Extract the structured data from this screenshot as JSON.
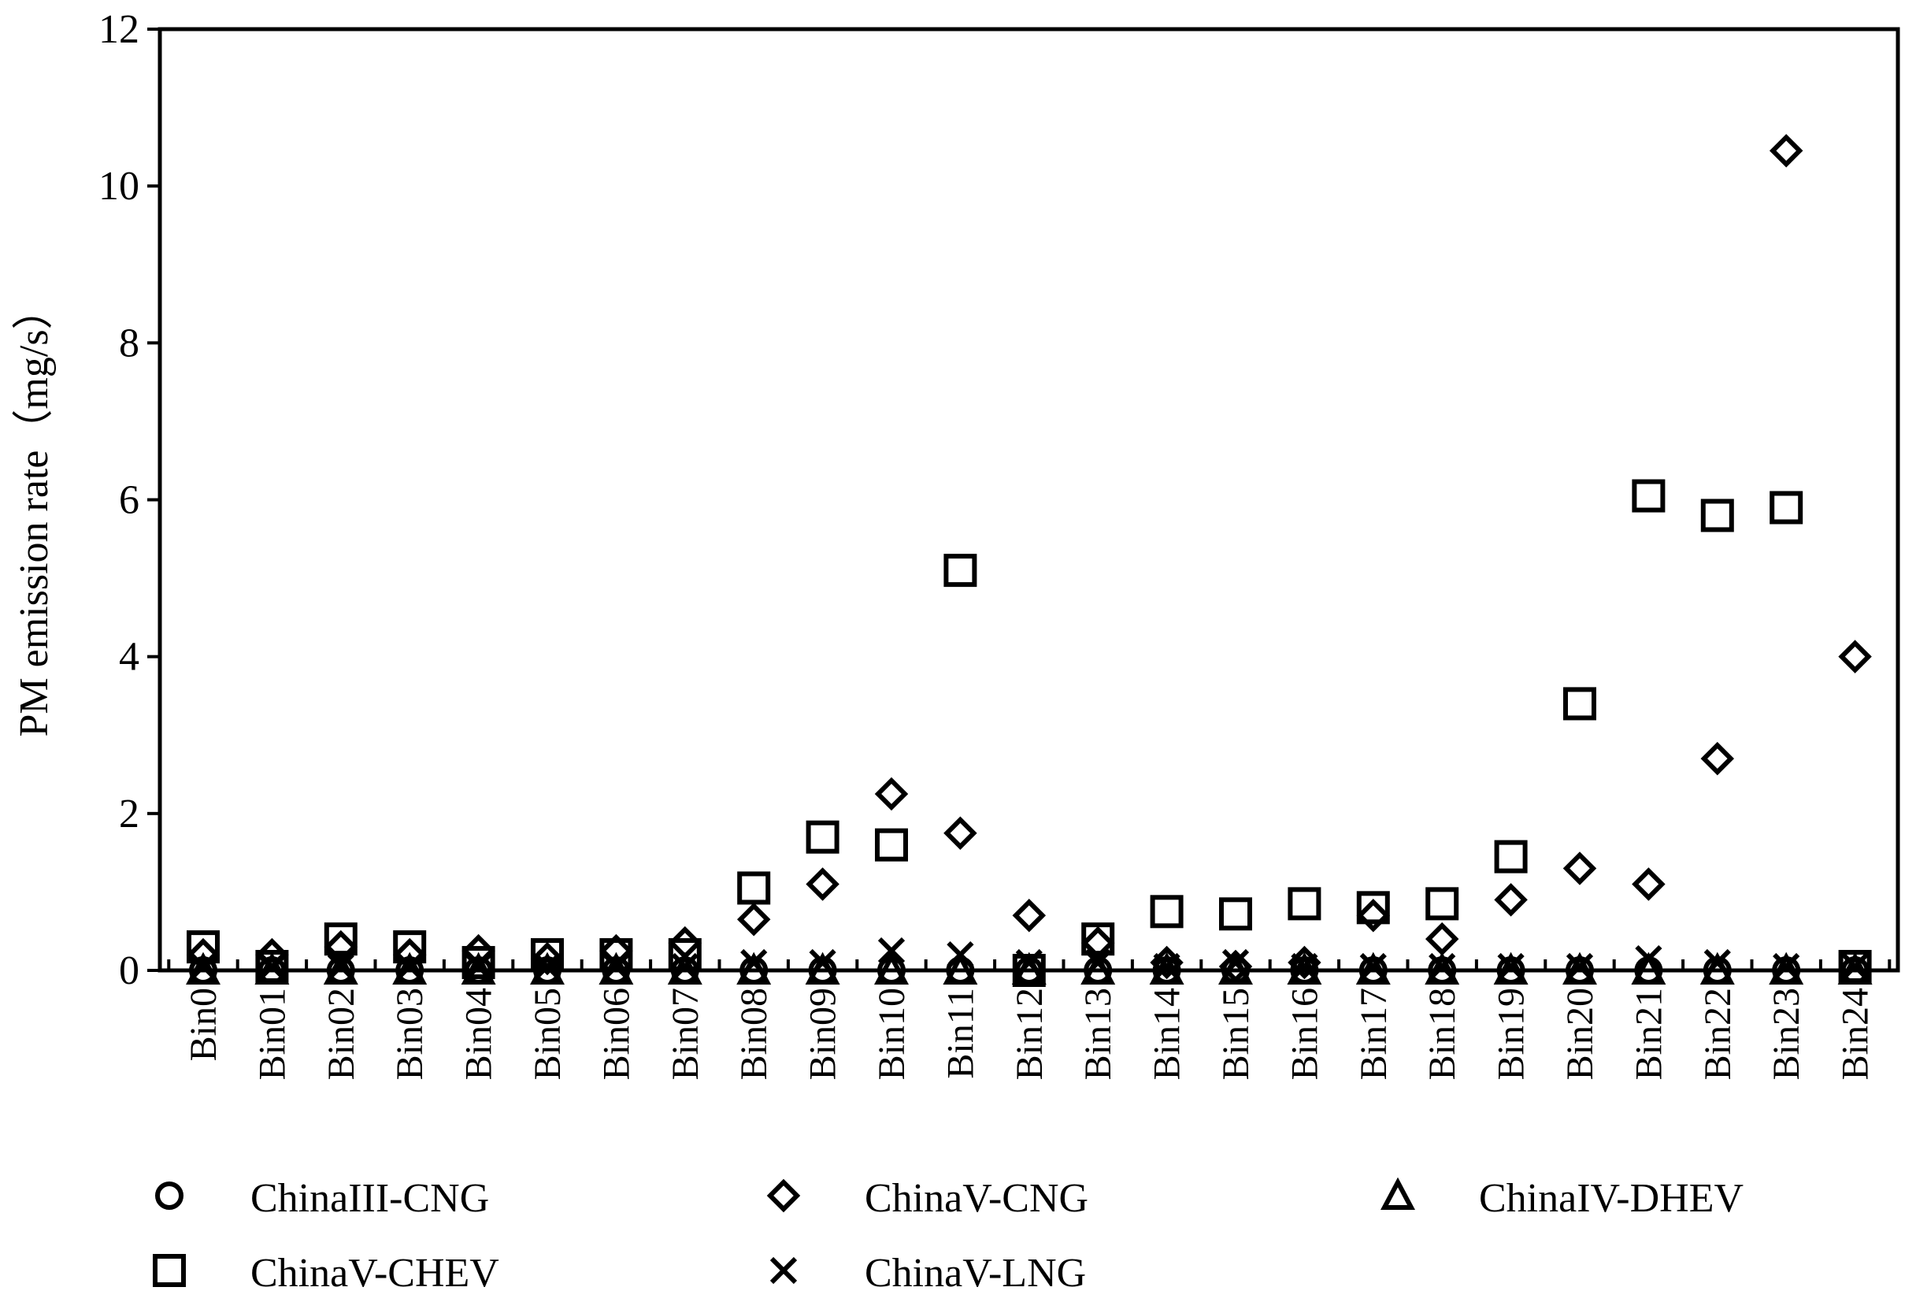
{
  "chart_data": {
    "type": "scatter",
    "title": "",
    "xlabel": "",
    "ylabel": "PM emission rate（mg/s）",
    "ylim": [
      0,
      12
    ],
    "yticks": [
      "0",
      "2",
      "4",
      "6",
      "8",
      "10",
      "12"
    ],
    "categories": [
      "Bin0",
      "Bin01",
      "Bin02",
      "Bin03",
      "Bin04",
      "Bin05",
      "Bin06",
      "Bin07",
      "Bin08",
      "Bin09",
      "Bin10",
      "Bin11",
      "Bin12",
      "Bin13",
      "Bin14",
      "Bin15",
      "Bin16",
      "Bin17",
      "Bin18",
      "Bin19",
      "Bin20",
      "Bin21",
      "Bin22",
      "Bin23",
      "Bin24"
    ],
    "legend_position": "bottom",
    "series": [
      {
        "name": "ChinaIII-CNG",
        "marker": "circle",
        "values": [
          0,
          0,
          0,
          0,
          0,
          0,
          0,
          0,
          0,
          0,
          0,
          0,
          0,
          0,
          0,
          0,
          0,
          0,
          0,
          0,
          0,
          0,
          0,
          0,
          0
        ]
      },
      {
        "name": "ChinaV-CNG",
        "marker": "diamond",
        "values": [
          0.2,
          0.2,
          0.3,
          0.2,
          0.25,
          0.15,
          0.25,
          0.35,
          0.65,
          1.1,
          2.25,
          1.75,
          0.7,
          0.35,
          0.1,
          0.05,
          0.1,
          0.7,
          0.4,
          0.9,
          1.3,
          1.1,
          2.7,
          10.45,
          4.0
        ]
      },
      {
        "name": "ChinaIV-DHEV",
        "marker": "triangle",
        "values": [
          0,
          0,
          0,
          0,
          0,
          0,
          0,
          0,
          0,
          0,
          0,
          0,
          0,
          0,
          0,
          0,
          0,
          0,
          0,
          0,
          0,
          0,
          0,
          0,
          0
        ]
      },
      {
        "name": "ChinaV-CHEV",
        "marker": "square",
        "values": [
          0.3,
          0.05,
          0.4,
          0.3,
          0.1,
          0.2,
          0.2,
          0.2,
          1.05,
          1.7,
          1.6,
          5.1,
          0.0,
          0.4,
          0.75,
          0.72,
          0.85,
          0.8,
          0.85,
          1.45,
          3.4,
          6.05,
          5.8,
          5.9,
          0.05
        ]
      },
      {
        "name": "ChinaV-LNG",
        "marker": "x",
        "values": [
          0.05,
          0.05,
          0.05,
          0.05,
          0.05,
          0.05,
          0.05,
          0.05,
          0.1,
          0.1,
          0.25,
          0.2,
          0.1,
          0.1,
          0.05,
          0.1,
          0.05,
          0.05,
          0.05,
          0.05,
          0.05,
          0.15,
          0.1,
          0.05,
          0.05
        ]
      }
    ]
  }
}
